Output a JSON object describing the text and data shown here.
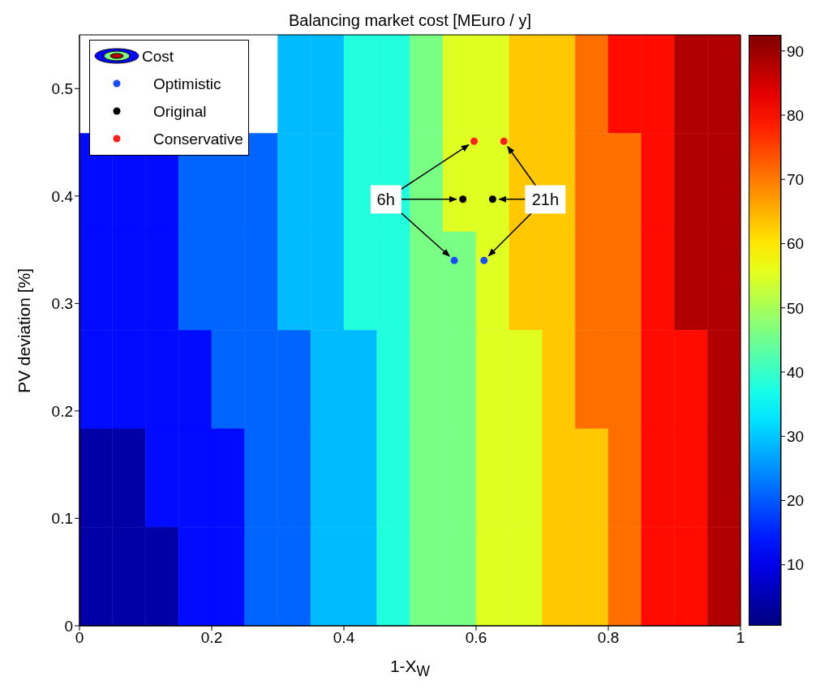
{
  "chart_data": {
    "type": "heatmap",
    "title": "Balancing market cost [MEuro / y]",
    "xlabel": "1-X$_{W}$",
    "ylabel": "PV deviation [%]",
    "xlim": [
      0,
      1
    ],
    "xticks": [
      0,
      0.2,
      0.4,
      0.6,
      0.8,
      1
    ],
    "ylim": [
      0,
      0.55
    ],
    "yticks": [
      0,
      0.1,
      0.2,
      0.3,
      0.4,
      0.5
    ],
    "clim": [
      0.5,
      92.5
    ],
    "cticks": [
      10,
      20,
      30,
      40,
      50,
      60,
      70,
      80,
      90
    ],
    "grid": false,
    "legend": "top left",
    "marker": "circle",
    "cells": [
      [
        null,
        null,
        null,
        null,
        null,
        null,
        29,
        29,
        38,
        38,
        46,
        55,
        55,
        63,
        63,
        71,
        80,
        80,
        88,
        88
      ],
      [
        13,
        13,
        13,
        21,
        21,
        21,
        29,
        29,
        38,
        38,
        46,
        55,
        55,
        63,
        63,
        71,
        71,
        80,
        88,
        88
      ],
      [
        13,
        13,
        13,
        21,
        21,
        21,
        29,
        29,
        38,
        38,
        46,
        46,
        55,
        63,
        63,
        71,
        71,
        80,
        88,
        88
      ],
      [
        13,
        13,
        13,
        13,
        21,
        21,
        21,
        29,
        29,
        38,
        46,
        46,
        55,
        55,
        63,
        71,
        71,
        80,
        80,
        88
      ],
      [
        4,
        4,
        13,
        13,
        13,
        21,
        21,
        29,
        29,
        38,
        46,
        46,
        55,
        55,
        63,
        63,
        71,
        80,
        80,
        88
      ],
      [
        4,
        4,
        4,
        13,
        13,
        21,
        21,
        29,
        29,
        38,
        46,
        46,
        55,
        55,
        63,
        63,
        71,
        80,
        80,
        88
      ]
    ],
    "series": [
      {
        "type": "heatmap",
        "name": "Cost"
      },
      {
        "type": "scatter",
        "name": "Optimistic",
        "color": "#1a4dff",
        "x": [
          0.567,
          0.612
        ],
        "values": [
          0.34,
          0.34
        ]
      },
      {
        "type": "scatter",
        "name": "Original",
        "color": "#000000",
        "x": [
          0.58,
          0.625
        ],
        "values": [
          0.397,
          0.397
        ]
      },
      {
        "type": "scatter",
        "name": "Conservative",
        "color": "#ff2020",
        "x": [
          0.597,
          0.642
        ],
        "values": [
          0.451,
          0.451
        ]
      }
    ],
    "annotations": [
      {
        "text": "6h",
        "x": 0.58,
        "y": 0.397
      },
      {
        "text": "21h",
        "x": 0.625,
        "y": 0.397
      }
    ]
  }
}
